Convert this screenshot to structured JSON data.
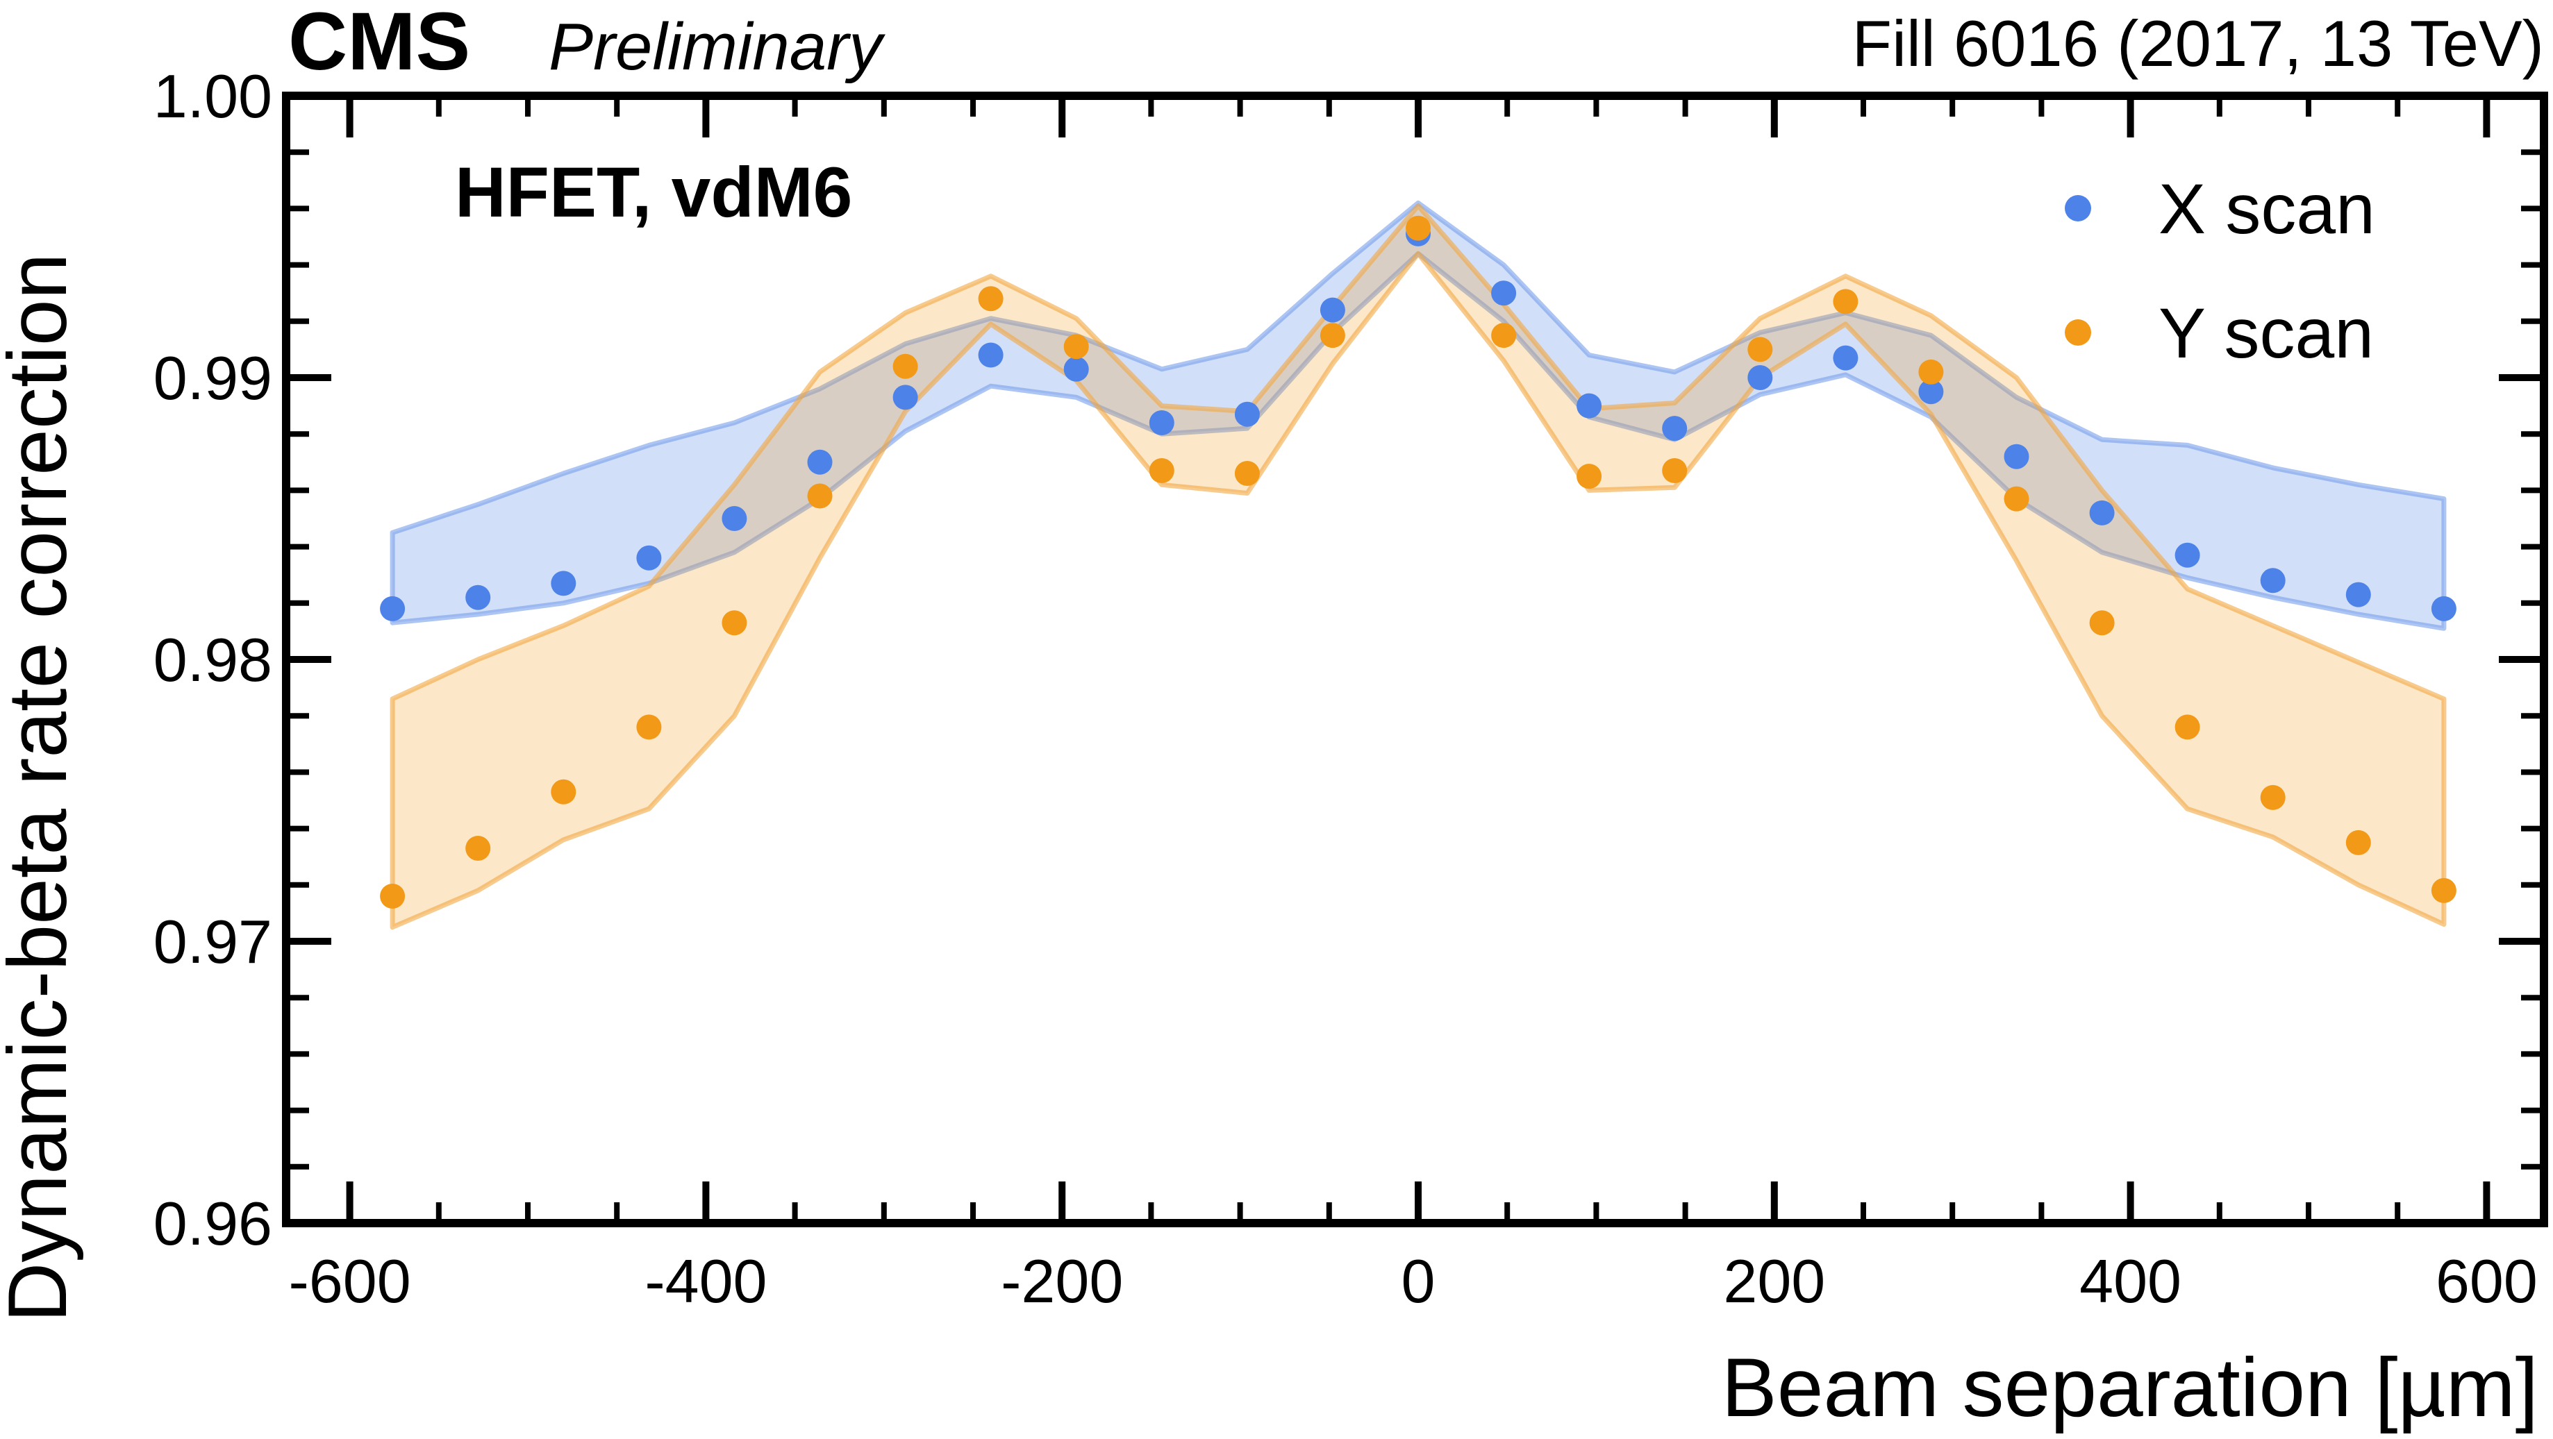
{
  "header": {
    "experiment": "CMS",
    "preliminary": "Preliminary",
    "fill_info": "Fill 6016 (2017, 13 TeV)"
  },
  "panel_label": "HFET, vdM6",
  "colors": {
    "x_scan_marker": "#4d82e8",
    "y_scan_marker": "#f29a17",
    "x_scan_band_fill": "rgba(77,130,232,0.26)",
    "x_scan_band_edge": "rgba(118,158,234,0.60)",
    "y_scan_band_fill": "rgba(242,154,23,0.24)",
    "y_scan_band_edge": "rgba(242,166,65,0.60)",
    "axis": "#000000"
  },
  "chart_data": {
    "type": "scatter",
    "title": "",
    "xlabel": "Beam separation [µm]",
    "ylabel": "Dynamic-beta rate correction",
    "xlim": [
      -635,
      632
    ],
    "ylim": [
      0.96,
      1.0
    ],
    "grid": false,
    "legend_position": "top-right",
    "x_tick_values": [
      -600,
      -400,
      -200,
      0,
      200,
      400,
      600
    ],
    "x_tick_labels": [
      "-600",
      "-400",
      "-200",
      "0",
      "200",
      "400",
      "600"
    ],
    "x_minor_step": 50,
    "y_tick_values": [
      1.0,
      0.99,
      0.98,
      0.97,
      0.96
    ],
    "y_tick_labels": [
      "1.00",
      "0.99",
      "0.98",
      "0.97",
      "0.96"
    ],
    "y_minor_step": 0.002,
    "x": [
      -576,
      -528,
      -480,
      -432,
      -384,
      -336,
      -288,
      -240,
      -192,
      -144,
      -96,
      -48,
      0,
      48,
      96,
      144,
      192,
      240,
      288,
      336,
      384,
      432,
      480,
      528,
      576
    ],
    "series": [
      {
        "name": "X scan",
        "values": [
          0.9818,
          0.9822,
          0.9827,
          0.9836,
          0.985,
          0.987,
          0.9893,
          0.9908,
          0.9903,
          0.9884,
          0.9887,
          0.9924,
          0.9951,
          0.993,
          0.989,
          0.9882,
          0.99,
          0.9907,
          0.9895,
          0.9872,
          0.9852,
          0.9837,
          0.9828,
          0.9823,
          0.9818
        ],
        "band_lower": [
          0.9813,
          0.9816,
          0.982,
          0.9827,
          0.9838,
          0.9857,
          0.9881,
          0.9897,
          0.9893,
          0.988,
          0.9882,
          0.9916,
          0.9944,
          0.992,
          0.9886,
          0.9878,
          0.9894,
          0.9901,
          0.9886,
          0.9857,
          0.9838,
          0.9829,
          0.9822,
          0.9816,
          0.9811
        ],
        "band_upper": [
          0.9845,
          0.9855,
          0.9866,
          0.9876,
          0.9884,
          0.9896,
          0.9912,
          0.9921,
          0.9915,
          0.9903,
          0.991,
          0.9937,
          0.9962,
          0.994,
          0.9908,
          0.9902,
          0.9916,
          0.9923,
          0.9915,
          0.9893,
          0.9878,
          0.9876,
          0.9868,
          0.9862,
          0.9857
        ]
      },
      {
        "name": "Y scan",
        "values": [
          0.9716,
          0.9733,
          0.9753,
          0.9776,
          0.9813,
          0.9858,
          0.9904,
          0.9928,
          0.9911,
          0.9867,
          0.9866,
          0.9915,
          0.9953,
          0.9915,
          0.9865,
          0.9867,
          0.991,
          0.9927,
          0.9902,
          0.9857,
          0.9813,
          0.9776,
          0.9751,
          0.9735,
          0.9718
        ],
        "band_lower": [
          0.9705,
          0.9718,
          0.9736,
          0.9747,
          0.978,
          0.9836,
          0.9888,
          0.9919,
          0.9899,
          0.9862,
          0.9859,
          0.9905,
          0.9944,
          0.9906,
          0.986,
          0.9861,
          0.99,
          0.9919,
          0.9887,
          0.9835,
          0.978,
          0.9747,
          0.9737,
          0.972,
          0.9706
        ],
        "band_upper": [
          0.9786,
          0.98,
          0.9812,
          0.9826,
          0.9862,
          0.9902,
          0.9923,
          0.9936,
          0.9921,
          0.989,
          0.9888,
          0.9925,
          0.9961,
          0.9926,
          0.9889,
          0.9891,
          0.9921,
          0.9936,
          0.9922,
          0.99,
          0.986,
          0.9825,
          0.9812,
          0.9799,
          0.9786
        ]
      }
    ],
    "legend": [
      {
        "label": "X scan"
      },
      {
        "label": "Y scan"
      }
    ]
  }
}
